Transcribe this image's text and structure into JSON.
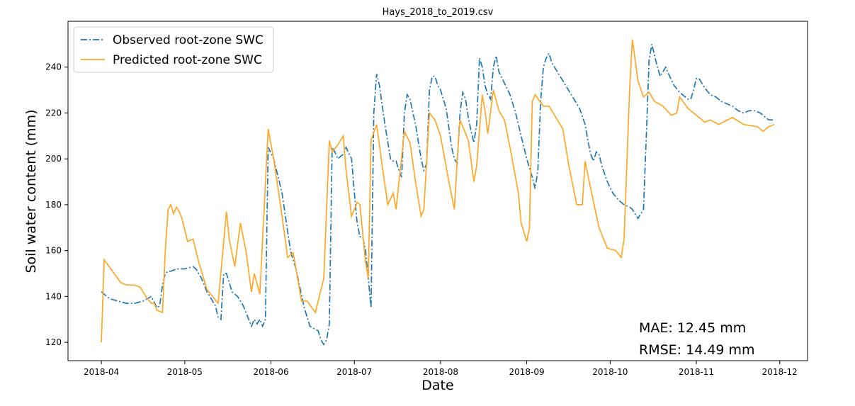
{
  "chart_data": {
    "type": "line",
    "title": "Hays_2018_to_2019.csv",
    "x_label": "Date",
    "y_label": "Soil water content (mm)",
    "xlim": [
      -12,
      254
    ],
    "ylim": [
      112,
      260
    ],
    "xticks": [
      {
        "value": 0,
        "label": "2018-04"
      },
      {
        "value": 30,
        "label": "2018-05"
      },
      {
        "value": 61,
        "label": "2018-06"
      },
      {
        "value": 91,
        "label": "2018-07"
      },
      {
        "value": 122,
        "label": "2018-08"
      },
      {
        "value": 153,
        "label": "2018-09"
      },
      {
        "value": 183,
        "label": "2018-10"
      },
      {
        "value": 214,
        "label": "2018-11"
      },
      {
        "value": 244,
        "label": "2018-12"
      }
    ],
    "yticks": [
      120,
      140,
      160,
      180,
      200,
      220,
      240
    ],
    "legend": "upper-left",
    "grid": false,
    "annotations": [
      "MAE: 12.45 mm",
      "RMSE: 14.49 mm"
    ],
    "series": [
      {
        "name": "Observed root-zone SWC",
        "color": "#1f77b4",
        "style": "dashdot",
        "x": [
          0,
          3,
          6,
          9,
          12,
          15,
          18,
          20,
          21,
          22,
          23,
          24,
          25,
          27,
          30,
          33,
          34,
          36,
          38,
          41,
          42,
          43,
          44,
          45,
          47,
          49,
          51,
          53,
          54,
          55,
          56,
          57,
          58,
          59,
          60,
          62,
          65,
          68,
          70,
          73,
          75,
          78,
          79,
          80,
          81,
          82,
          83,
          84,
          85,
          87,
          88,
          90,
          91,
          92,
          93,
          94,
          95,
          96,
          97,
          98,
          99,
          100,
          102,
          104,
          105,
          106,
          107,
          108,
          109,
          110,
          111,
          113,
          115,
          116,
          117,
          118,
          119,
          120,
          121,
          122,
          124,
          126,
          127,
          128,
          129,
          130,
          131,
          132,
          133,
          134,
          135,
          136,
          137,
          138,
          139,
          140,
          141,
          142,
          143,
          145,
          147,
          149,
          151,
          153,
          155,
          156,
          157,
          158,
          159,
          160,
          161,
          162,
          164,
          166,
          168,
          170,
          172,
          174,
          175,
          176,
          177,
          178,
          179,
          180,
          182,
          184,
          186,
          188,
          190,
          191,
          192,
          193,
          194,
          195,
          196,
          197,
          198,
          199,
          200,
          201,
          202,
          203,
          204,
          206,
          208,
          210,
          211,
          212,
          213,
          214,
          215,
          217,
          219,
          221,
          223,
          225,
          227,
          229,
          231,
          233,
          235,
          237,
          239,
          240,
          241,
          242
        ],
        "values": [
          142,
          139,
          138,
          137,
          137,
          138,
          140,
          135,
          136,
          145,
          150,
          151,
          151,
          152,
          152,
          153,
          152,
          148,
          142,
          136,
          131,
          130,
          150,
          150,
          142,
          140,
          136,
          130,
          127,
          130,
          128,
          130,
          127,
          130,
          205,
          200,
          185,
          160,
          152,
          135,
          127,
          125,
          121,
          119,
          121,
          128,
          205,
          203,
          200,
          202,
          205,
          200,
          185,
          172,
          166,
          166,
          160,
          148,
          135,
          220,
          237,
          232,
          215,
          200,
          199,
          199,
          195,
          192,
          220,
          228,
          226,
          215,
          200,
          195,
          198,
          230,
          236,
          236,
          232,
          230,
          222,
          205,
          200,
          198,
          220,
          229,
          226,
          218,
          212,
          207,
          215,
          244,
          240,
          232,
          228,
          226,
          240,
          245,
          238,
          233,
          228,
          220,
          210,
          200,
          192,
          187,
          195,
          225,
          240,
          244,
          246,
          242,
          238,
          234,
          230,
          226,
          222,
          215,
          208,
          202,
          199,
          203,
          202,
          197,
          190,
          185,
          182,
          180,
          179,
          178,
          176,
          174,
          176,
          178,
          210,
          243,
          250,
          245,
          240,
          236,
          238,
          240,
          237,
          232,
          229,
          227,
          226,
          226,
          230,
          235,
          235,
          231,
          228,
          227,
          225,
          224,
          223,
          221,
          220,
          221,
          221,
          220,
          218,
          217,
          217,
          217
        ]
      },
      {
        "name": "Predicted root-zone SWC",
        "color": "#ffa726",
        "style": "solid",
        "x": [
          0,
          1,
          4,
          7,
          9,
          12,
          14,
          16,
          18,
          19,
          20,
          22,
          23,
          24,
          25,
          26,
          27,
          28,
          29,
          31,
          33,
          35,
          38,
          40,
          42,
          45,
          46,
          48,
          50,
          52,
          54,
          55,
          57,
          60,
          62,
          65,
          67,
          69,
          72,
          74,
          77,
          80,
          82,
          83,
          85,
          87,
          88,
          90,
          92,
          93,
          95,
          96,
          97,
          99,
          101,
          103,
          105,
          106,
          109,
          111,
          113,
          115,
          116,
          118,
          120,
          122,
          125,
          127,
          128,
          129,
          132,
          134,
          135,
          137,
          138,
          139,
          141,
          143,
          145,
          147,
          150,
          151,
          153,
          154,
          155,
          156,
          159,
          161,
          164,
          166,
          168,
          171,
          173,
          174,
          176,
          179,
          182,
          185,
          187,
          188,
          190,
          191,
          193,
          195,
          197,
          199,
          202,
          205,
          207,
          208,
          211,
          215,
          217,
          219,
          222,
          227,
          231,
          236,
          238,
          240,
          242
        ],
        "values": [
          120,
          156,
          151,
          146,
          145,
          145,
          144,
          140,
          137,
          137,
          134,
          133,
          160,
          178,
          180,
          176,
          179,
          177,
          174,
          164,
          165,
          155,
          143,
          140,
          137,
          177,
          165,
          153,
          172,
          160,
          142,
          150,
          141,
          213,
          200,
          175,
          157,
          159,
          138,
          138,
          133,
          148,
          208,
          203,
          206,
          210,
          195,
          175,
          181,
          180,
          155,
          148,
          208,
          215,
          197,
          180,
          185,
          178,
          212,
          207,
          190,
          175,
          178,
          220,
          217,
          210,
          190,
          178,
          200,
          217,
          208,
          190,
          197,
          228,
          221,
          211,
          230,
          221,
          217,
          205,
          185,
          172,
          164,
          170,
          225,
          228,
          223,
          223,
          217,
          213,
          198,
          180,
          180,
          199,
          187,
          170,
          161,
          160,
          157,
          165,
          230,
          252,
          234,
          227,
          229,
          225,
          223,
          219,
          220,
          227,
          222,
          218,
          216,
          217,
          215,
          218,
          215,
          214,
          212,
          214,
          215
        ]
      }
    ]
  }
}
